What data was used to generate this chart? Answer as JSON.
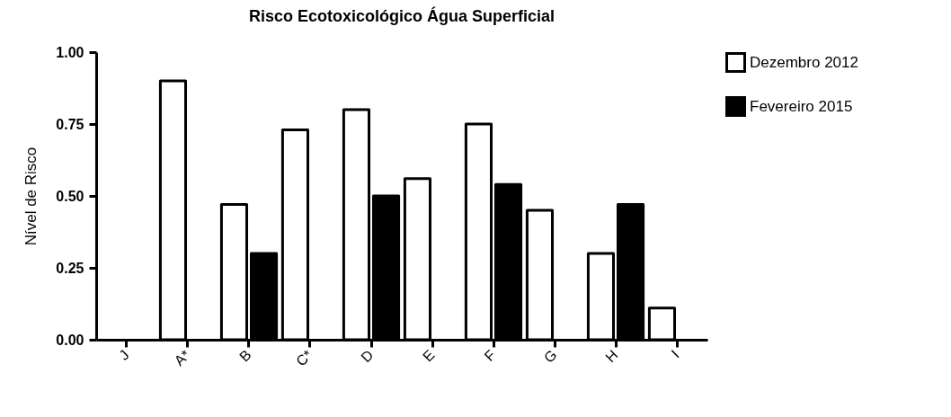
{
  "chart_data": {
    "type": "bar",
    "title": "Risco Ecotoxicológico Água Superficial",
    "ylabel": "Nível de Risco",
    "categories": [
      "J",
      "A*",
      "B",
      "C*",
      "D",
      "E",
      "F",
      "G",
      "H",
      "I"
    ],
    "series": [
      {
        "name": "Dezembro 2012",
        "color": "#ffffff",
        "values": [
          null,
          0.9,
          0.47,
          0.73,
          0.8,
          0.56,
          0.75,
          0.45,
          0.3,
          0.11
        ]
      },
      {
        "name": "Fevereiro 2015",
        "color": "#000000",
        "values": [
          null,
          null,
          0.3,
          null,
          0.5,
          null,
          0.54,
          null,
          0.47,
          null
        ]
      }
    ],
    "ylim": [
      0,
      1
    ],
    "yticks": [
      {
        "value": 0,
        "label": "0.00"
      },
      {
        "value": 0.25,
        "label": "0.25"
      },
      {
        "value": 0.5,
        "label": "0.50"
      },
      {
        "value": 0.75,
        "label": "0.75"
      },
      {
        "value": 1,
        "label": "1.00"
      }
    ],
    "grid": false,
    "legend": "top right"
  }
}
